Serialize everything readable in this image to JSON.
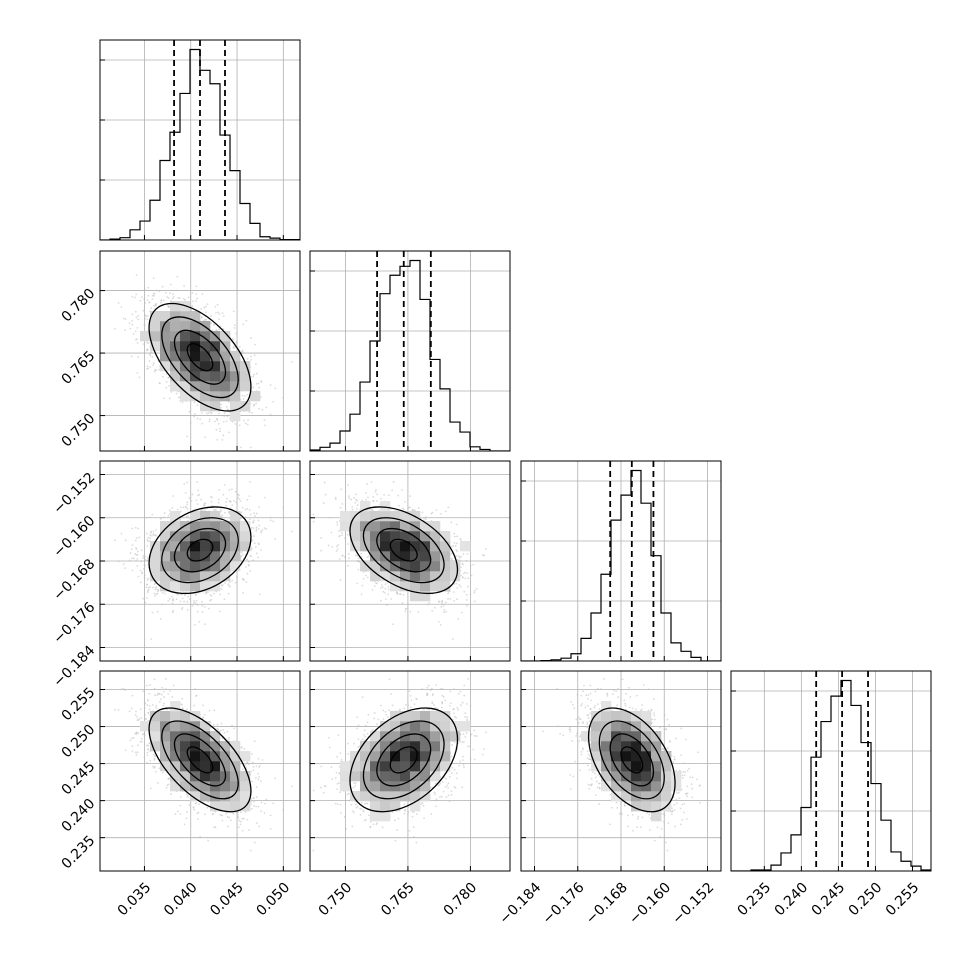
{
  "chart_data": {
    "type": "corner",
    "parameters": [
      "p0",
      "p1",
      "p2",
      "p3"
    ],
    "parameter_labels": [
      "",
      "",
      "",
      ""
    ],
    "ranges": [
      [
        0.0302,
        0.0518
      ],
      [
        0.7415,
        0.7895
      ],
      [
        -0.1865,
        -0.1495
      ],
      [
        0.2305,
        0.2575
      ]
    ],
    "ticks": [
      [
        0.035,
        0.04,
        0.045,
        0.05
      ],
      [
        0.75,
        0.765,
        0.78
      ],
      [
        -0.184,
        -0.176,
        -0.168,
        -0.16,
        -0.152
      ],
      [
        0.235,
        0.24,
        0.245,
        0.25,
        0.255
      ]
    ],
    "tick_labels": [
      [
        "0.035",
        "0.040",
        "0.045",
        "0.050"
      ],
      [
        "0.750",
        "0.765",
        "0.780"
      ],
      [
        "−0.184",
        "−0.176",
        "−0.168",
        "−0.160",
        "−0.152"
      ],
      [
        "0.235",
        "0.240",
        "0.245",
        "0.250",
        "0.255"
      ]
    ],
    "means": [
      0.041,
      0.764,
      -0.166,
      0.2455
    ],
    "quantiles": [
      [
        0.0382,
        0.041,
        0.0437
      ],
      [
        0.7576,
        0.764,
        0.7705
      ],
      [
        -0.17,
        -0.166,
        -0.162
      ],
      [
        0.242,
        0.2455,
        0.249
      ]
    ],
    "correlations": [
      [
        1,
        -0.55,
        0.3,
        -0.6
      ],
      [
        -0.55,
        1,
        -0.45,
        0.4
      ],
      [
        0.3,
        -0.45,
        1,
        -0.45
      ],
      [
        -0.6,
        0.4,
        -0.45,
        1
      ]
    ],
    "histogram_bins": 20,
    "contour_levels": [
      0.5,
      1.0,
      1.5,
      2.0
    ],
    "grid": true,
    "colors": {
      "line": "#000000",
      "density": "#000000",
      "points": "#bdbdbd",
      "grid": "#b0b0b0"
    }
  }
}
